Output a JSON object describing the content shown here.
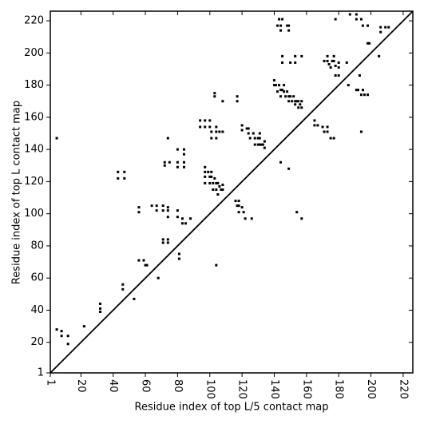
{
  "chart_data": {
    "type": "scatter",
    "x_label": "Residue index of top L/5 contact map",
    "y_label": "Residue index of top L contact map",
    "xlim": [
      1,
      226
    ],
    "ylim": [
      1,
      226
    ],
    "xticks": [
      1,
      20,
      40,
      60,
      80,
      100,
      120,
      140,
      160,
      180,
      200,
      220
    ],
    "yticks": [
      1,
      20,
      40,
      60,
      80,
      100,
      120,
      140,
      160,
      180,
      200,
      220
    ],
    "color": "#000000",
    "diagonal": true,
    "x": [
      5,
      5,
      8,
      8,
      12,
      12,
      22,
      32,
      32,
      32,
      43,
      43,
      47,
      47,
      46,
      46,
      53,
      56,
      56,
      56,
      59,
      60,
      61,
      64,
      67,
      67,
      71,
      71,
      74,
      74,
      74,
      68,
      71,
      71,
      74,
      74,
      72,
      72,
      75,
      74,
      80,
      84,
      84,
      80,
      80,
      84,
      84,
      80,
      80,
      81,
      81,
      83,
      83,
      85,
      88,
      94,
      97,
      94,
      97,
      100,
      100,
      101,
      101,
      104,
      104,
      104,
      106,
      108,
      97,
      97,
      97,
      97,
      99,
      100,
      100,
      101,
      101,
      102,
      102,
      103,
      104,
      104,
      105,
      105,
      106,
      107,
      108,
      108,
      104,
      103,
      103,
      108,
      116,
      117,
      118,
      118,
      118,
      120,
      121,
      122,
      126,
      120,
      120,
      123,
      124,
      124,
      125,
      127,
      128,
      128,
      130,
      130,
      131,
      131,
      131,
      132,
      133,
      134,
      134,
      117,
      117,
      140,
      140,
      141,
      142,
      143,
      144,
      144,
      145,
      146,
      146,
      147,
      148,
      149,
      149,
      150,
      151,
      152,
      153,
      153,
      154,
      155,
      155,
      156,
      157,
      157,
      142,
      143,
      144,
      144,
      145,
      148,
      149,
      149,
      145,
      145,
      150,
      153,
      153,
      157,
      165,
      165,
      167,
      170,
      171,
      173,
      173,
      175,
      177,
      171,
      173,
      173,
      174,
      175,
      176,
      177,
      177,
      178,
      178,
      180,
      180,
      180,
      178,
      185,
      186,
      187,
      191,
      191,
      194,
      195,
      198,
      198,
      199,
      206,
      206,
      209,
      211,
      191,
      192,
      193,
      194,
      196,
      198,
      194,
      195,
      144,
      149,
      154,
      157,
      205
    ],
    "values": [
      147,
      28,
      27,
      24,
      24,
      19,
      30,
      44,
      41,
      39,
      126,
      122,
      126,
      122,
      56,
      53,
      47,
      104,
      101,
      71,
      71,
      68,
      68,
      105,
      105,
      102,
      105,
      102,
      104,
      102,
      98,
      60,
      84,
      82,
      84,
      82,
      132,
      130,
      132,
      147,
      140,
      140,
      137,
      132,
      129,
      132,
      129,
      102,
      98,
      75,
      72,
      97,
      94,
      94,
      97,
      158,
      158,
      154,
      154,
      158,
      154,
      151,
      147,
      154,
      151,
      147,
      151,
      151,
      129,
      126,
      123,
      119,
      126,
      123,
      119,
      126,
      123,
      119,
      115,
      122,
      119,
      115,
      119,
      112,
      117,
      115,
      118,
      115,
      68,
      175,
      173,
      170,
      108,
      105,
      108,
      105,
      101,
      104,
      101,
      97,
      97,
      155,
      152,
      153,
      153,
      150,
      147,
      150,
      147,
      143,
      147,
      143,
      150,
      147,
      143,
      143,
      143,
      145,
      141,
      173,
      170,
      183,
      180,
      180,
      176,
      180,
      177,
      173,
      177,
      180,
      176,
      173,
      176,
      173,
      170,
      173,
      170,
      173,
      170,
      168,
      170,
      170,
      166,
      168,
      166,
      170,
      217,
      221,
      214,
      217,
      221,
      217,
      214,
      217,
      198,
      194,
      194,
      198,
      194,
      198,
      158,
      155,
      155,
      154,
      151,
      151,
      154,
      147,
      147,
      195,
      195,
      198,
      193,
      191,
      195,
      195,
      198,
      192,
      186,
      194,
      191,
      186,
      221,
      194,
      180,
      224,
      224,
      221,
      221,
      217,
      217,
      206,
      206,
      216,
      213,
      216,
      216,
      177,
      177,
      186,
      174,
      174,
      174,
      151,
      177,
      132,
      128,
      101,
      97,
      198
    ]
  }
}
